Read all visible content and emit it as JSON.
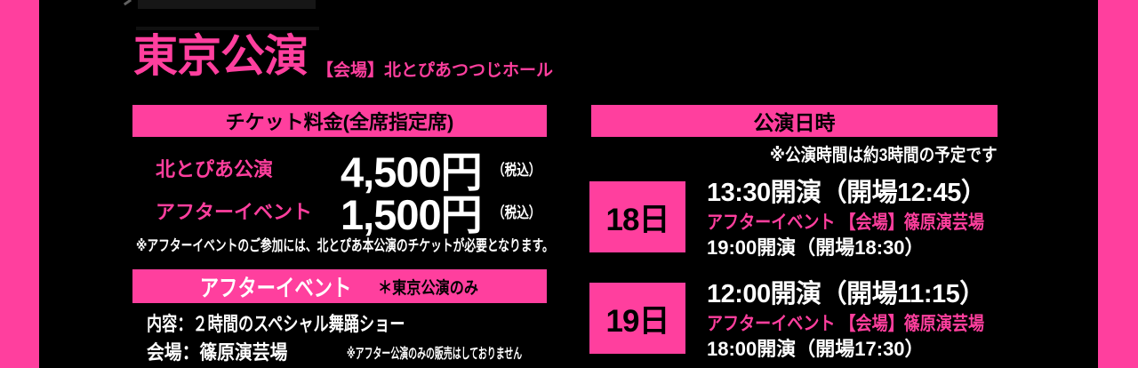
{
  "page": {
    "accent_color": "#ff3f9e",
    "background_color": "#000000",
    "text_color": "#ffffff"
  },
  "header": {
    "title": "東京公演",
    "venue": "【会場】北とぴあつつじホール"
  },
  "ticket_section": {
    "header": "チケット料金(全席指定席)",
    "prices": [
      {
        "label": "北とぴあ公演",
        "price": "4,500円",
        "tax": "（税込）"
      },
      {
        "label": "アフターイベント",
        "price": "1,500円",
        "tax": "（税込）"
      }
    ],
    "note": "※アフターイベントのご参加には、北とぴあ本公演のチケットが必要となります。"
  },
  "after_event_section": {
    "header_main": "アフターイベント",
    "header_sub": "＊東京公演のみ",
    "content_line": "内容：２時間のスペシャル舞踊ショー",
    "venue_line": "会場：篠原演芸場",
    "venue_note": "※アフター公演のみの販売はしておりません"
  },
  "schedule_section": {
    "header": "公演日時",
    "note": "※公演時間は約3時間の予定です",
    "days": [
      {
        "date": "18日",
        "main_time": "13:30開演（開場12:45）",
        "after_label": "アフターイベント 【会場】篠原演芸場",
        "after_time": "19:00開演（開場18:30）"
      },
      {
        "date": "19日",
        "main_time": "12:00開演（開場11:15）",
        "after_label": "アフターイベント 【会場】篠原演芸場",
        "after_time": "18:00開演（開場17:30）"
      }
    ]
  }
}
